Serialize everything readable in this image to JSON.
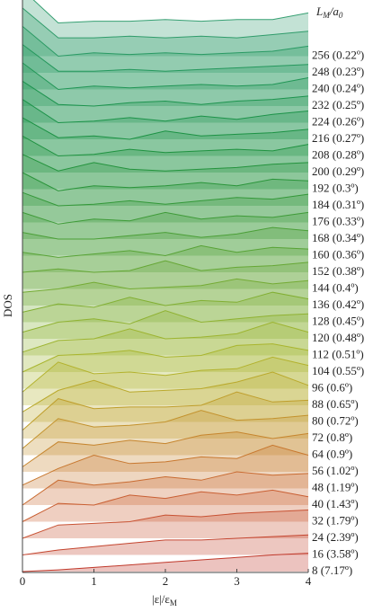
{
  "chart_data": {
    "type": "ridgeline",
    "xlabel": [
      "|ε|/ε",
      "M"
    ],
    "ylabel": "DOS",
    "legend_title": [
      "L",
      "M",
      "/a",
      "0"
    ],
    "x": [
      0,
      0.5,
      1,
      1.5,
      2,
      2.5,
      3,
      3.5,
      4
    ],
    "xlim": [
      0,
      4
    ],
    "xticks": [
      0,
      1,
      2,
      3,
      4
    ],
    "series": [
      {
        "name": "8 (7.17º)",
        "color": "#c0392b",
        "values": [
          0,
          0.1,
          0.25,
          0.4,
          0.55,
          0.7,
          0.85,
          1.0,
          1.1
        ]
      },
      {
        "name": "16 (3.58º)",
        "color": "#c4452f",
        "values": [
          0,
          0.3,
          0.5,
          0.7,
          0.9,
          0.9,
          1.0,
          1.1,
          1.2
        ]
      },
      {
        "name": "24 (2.39º)",
        "color": "#c85233",
        "values": [
          0,
          0.8,
          0.9,
          1.0,
          1.4,
          1.3,
          1.5,
          1.6,
          1.7
        ]
      },
      {
        "name": "32 (1.79º)",
        "color": "#c95f33",
        "values": [
          0,
          1.1,
          1.0,
          1.6,
          1.4,
          1.8,
          1.6,
          1.9,
          1.5
        ]
      },
      {
        "name": "40 (1.43º)",
        "color": "#c96b31",
        "values": [
          0,
          1.5,
          1.2,
          1.4,
          1.7,
          1.5,
          2.0,
          1.8,
          1.9
        ]
      },
      {
        "name": "48 (1.19º)",
        "color": "#c8782f",
        "values": [
          0.2,
          1.2,
          2.0,
          1.5,
          1.6,
          1.9,
          1.8,
          2.6,
          2.0
        ]
      },
      {
        "name": "56 (1.02º)",
        "color": "#c6852e",
        "values": [
          0.3,
          1.8,
          1.6,
          1.9,
          1.7,
          2.2,
          2.4,
          2.0,
          2.3
        ]
      },
      {
        "name": "64 (0.9º)",
        "color": "#c3922d",
        "values": [
          0.4,
          2.2,
          1.7,
          1.8,
          2.0,
          2.7,
          2.1,
          2.2,
          2.4
        ]
      },
      {
        "name": "72 (0.8º)",
        "color": "#bf9e2c",
        "values": [
          0.5,
          2.4,
          1.8,
          1.9,
          1.9,
          2.0,
          2.8,
          2.2,
          2.3
        ]
      },
      {
        "name": "80 (0.72º)",
        "color": "#baa92c",
        "values": [
          0.6,
          1.9,
          2.5,
          1.8,
          1.9,
          2.0,
          2.4,
          3.0,
          2.2
        ]
      },
      {
        "name": "88 (0.65º)",
        "color": "#b3b22d",
        "values": [
          0.8,
          2.6,
          1.9,
          2.0,
          1.8,
          2.1,
          2.2,
          2.9,
          2.4
        ]
      },
      {
        "name": "96 (0.6º)",
        "color": "#a9b52e",
        "values": [
          1.0,
          2.0,
          2.1,
          2.3,
          1.9,
          2.0,
          2.6,
          2.7,
          2.3
        ]
      },
      {
        "name": "104 (0.55º)",
        "color": "#9db430",
        "values": [
          1.2,
          1.9,
          2.0,
          2.6,
          2.0,
          2.1,
          2.3,
          3.0,
          2.4
        ]
      },
      {
        "name": "112 (0.51º)",
        "color": "#90b232",
        "values": [
          1.4,
          2.0,
          2.2,
          1.9,
          2.7,
          2.0,
          2.2,
          2.4,
          2.5
        ]
      },
      {
        "name": "120 (0.48º)",
        "color": "#82af33",
        "values": [
          1.6,
          2.1,
          1.9,
          2.5,
          2.0,
          2.3,
          2.2,
          2.8,
          2.4
        ]
      },
      {
        "name": "128 (0.45º)",
        "color": "#74ab34",
        "values": [
          1.8,
          2.0,
          2.4,
          2.0,
          2.1,
          2.2,
          2.6,
          2.3,
          2.5
        ]
      },
      {
        "name": "136 (0.42º)",
        "color": "#66a735",
        "values": [
          2.0,
          2.2,
          2.0,
          2.1,
          2.7,
          2.1,
          2.3,
          2.4,
          2.6
        ]
      },
      {
        "name": "144 (0.4º)",
        "color": "#58a336",
        "values": [
          2.2,
          1.9,
          2.1,
          2.3,
          2.0,
          2.6,
          2.2,
          2.5,
          2.4
        ]
      },
      {
        "name": "152 (0.38º)",
        "color": "#4b9f37",
        "values": [
          2.4,
          2.0,
          2.0,
          2.2,
          2.4,
          2.1,
          2.3,
          2.7,
          2.5
        ]
      },
      {
        "name": "160 (0.36º)",
        "color": "#3f9b38",
        "values": [
          2.6,
          1.9,
          2.2,
          2.1,
          2.6,
          2.2,
          2.4,
          2.3,
          2.6
        ]
      },
      {
        "name": "168 (0.34º)",
        "color": "#349839",
        "values": [
          2.8,
          2.0,
          2.1,
          2.3,
          2.1,
          2.3,
          2.5,
          2.4,
          2.7
        ]
      },
      {
        "name": "176 (0.33º)",
        "color": "#2b953b",
        "values": [
          3.0,
          1.9,
          2.2,
          2.1,
          2.2,
          2.4,
          2.2,
          2.6,
          2.5
        ]
      },
      {
        "name": "184 (0.31º)",
        "color": "#24933d",
        "values": [
          3.1,
          2.1,
          2.6,
          2.2,
          2.1,
          2.2,
          2.3,
          2.5,
          2.6
        ]
      },
      {
        "name": "192 (0.3º)",
        "color": "#1f9240",
        "values": [
          3.2,
          2.0,
          2.1,
          2.4,
          2.2,
          2.3,
          2.4,
          2.3,
          2.7
        ]
      },
      {
        "name": "200 (0.29º)",
        "color": "#1c9244",
        "values": [
          3.3,
          2.1,
          2.2,
          2.0,
          2.5,
          2.2,
          2.3,
          2.4,
          2.6
        ]
      },
      {
        "name": "208 (0.28º)",
        "color": "#1c9349",
        "values": [
          3.4,
          2.0,
          2.1,
          2.3,
          2.1,
          2.4,
          2.2,
          2.5,
          2.7
        ]
      },
      {
        "name": "216 (0.27º)",
        "color": "#1e944f",
        "values": [
          3.5,
          2.1,
          2.0,
          2.2,
          2.3,
          2.1,
          2.3,
          2.4,
          2.6
        ]
      },
      {
        "name": "224 (0.26º)",
        "color": "#219656",
        "values": [
          3.6,
          2.0,
          2.2,
          2.1,
          2.2,
          2.3,
          2.2,
          2.3,
          2.7
        ]
      },
      {
        "name": "232 (0.25º)",
        "color": "#25985d",
        "values": [
          3.7,
          2.1,
          2.1,
          2.2,
          2.1,
          2.2,
          2.3,
          2.4,
          2.5
        ]
      },
      {
        "name": "240 (0.24º)",
        "color": "#2a9a64",
        "values": [
          3.8,
          2.0,
          2.2,
          2.1,
          2.2,
          2.1,
          2.2,
          2.3,
          2.6
        ]
      },
      {
        "name": "248 (0.23º)",
        "color": "#309c6b",
        "values": [
          3.9,
          2.1,
          2.1,
          2.2,
          2.1,
          2.2,
          2.1,
          2.3,
          2.5
        ]
      },
      {
        "name": "256 (0.22º)",
        "color": "#37a073",
        "values": [
          4.0,
          2.0,
          2.1,
          2.1,
          2.2,
          2.1,
          2.2,
          2.2,
          2.6
        ]
      }
    ]
  }
}
